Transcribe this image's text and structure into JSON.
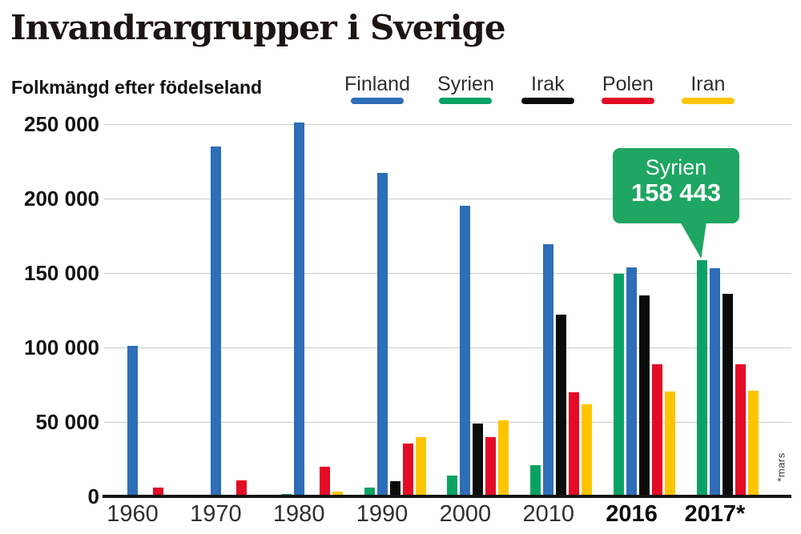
{
  "title": "Invandrargrupper i Sverige",
  "subtitle": "Folkmängd efter födelseland",
  "footnote": "*mars",
  "colors": {
    "finland_blue": "#2e6db8",
    "syrien_green": "#0aa264",
    "irak_black": "#0b0b0b",
    "polen_red": "#e30b26",
    "iran_yellow": "#fdc500",
    "callout_bg": "#1ea662",
    "gridline": "#cbcbcb",
    "axis": "#161616"
  },
  "legend": [
    {
      "label": "Finland",
      "color": "#2e6db8"
    },
    {
      "label": "Syrien",
      "color": "#0aa264"
    },
    {
      "label": "Irak",
      "color": "#0b0b0b"
    },
    {
      "label": "Polen",
      "color": "#e30b26"
    },
    {
      "label": "Iran",
      "color": "#fdc500"
    }
  ],
  "callout": {
    "label": "Syrien",
    "value": "158 443"
  },
  "chart_data": {
    "type": "bar",
    "title": "Invandrargrupper i Sverige",
    "subtitle": "Folkmängd efter födelseland",
    "categories": [
      "1960",
      "1970",
      "1980",
      "1990",
      "2000",
      "2010",
      "2016",
      "2017*"
    ],
    "bold_categories": [
      "2016",
      "2017*"
    ],
    "series": [
      {
        "name": "Finland",
        "color": "#2e6db8",
        "values": [
          101000,
          235000,
          251000,
          217000,
          195000,
          169500,
          153600,
          153000
        ]
      },
      {
        "name": "Syrien",
        "color": "#0aa264",
        "values": [
          0,
          0,
          1600,
          6000,
          14000,
          20800,
          149400,
          158443
        ]
      },
      {
        "name": "Irak",
        "color": "#0b0b0b",
        "values": [
          0,
          0,
          1000,
          10000,
          49000,
          122000,
          135000,
          136000
        ]
      },
      {
        "name": "Polen",
        "color": "#e30b26",
        "values": [
          6000,
          11000,
          20000,
          35500,
          40000,
          70000,
          88700,
          89000
        ]
      },
      {
        "name": "Iran",
        "color": "#fdc500",
        "values": [
          0,
          0,
          3400,
          40000,
          51000,
          62000,
          70600,
          71000
        ]
      }
    ],
    "bar_render_order": [
      "Syrien",
      "Finland",
      "Irak",
      "Polen",
      "Iran"
    ],
    "y_ticks": [
      {
        "label": "250 000",
        "value": 250000
      },
      {
        "label": "200 000",
        "value": 200000
      },
      {
        "label": "150 000",
        "value": 150000
      },
      {
        "label": "100 000",
        "value": 100000
      },
      {
        "label": "50 000",
        "value": 50000
      },
      {
        "label": "0",
        "value": 0
      }
    ],
    "ylim": [
      0,
      250000
    ],
    "grid": true,
    "legend_position": "top",
    "annotation": {
      "category": "2017*",
      "series": "Syrien",
      "label": "Syrien",
      "value_text": "158 443",
      "value": 158443
    },
    "footnote": "*mars"
  }
}
